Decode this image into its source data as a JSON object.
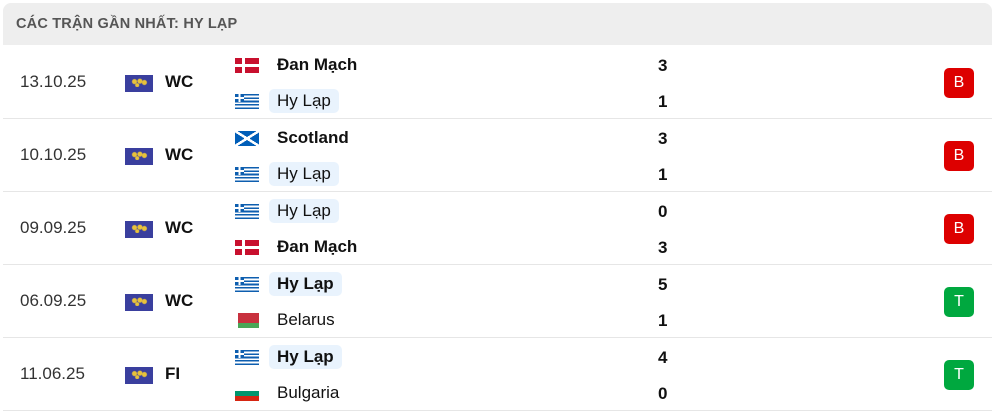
{
  "header": {
    "title": "CÁC TRẬN GẦN NHẤT: HY LẠP"
  },
  "colors": {
    "loss": "#dd0000",
    "win": "#00a83f",
    "highlight": "#e9f3fd"
  },
  "matches": [
    {
      "date": "13.10.25",
      "competition": "WC",
      "competition_icon": "world-map-icon",
      "home": {
        "name": "Đan Mạch",
        "flag": "denmark",
        "score": "3"
      },
      "away": {
        "name": "Hy Lạp",
        "flag": "greece",
        "score": "1"
      },
      "result": "B"
    },
    {
      "date": "10.10.25",
      "competition": "WC",
      "competition_icon": "world-map-icon",
      "home": {
        "name": "Scotland",
        "flag": "scotland",
        "score": "3"
      },
      "away": {
        "name": "Hy Lạp",
        "flag": "greece",
        "score": "1"
      },
      "result": "B"
    },
    {
      "date": "09.09.25",
      "competition": "WC",
      "competition_icon": "world-map-icon",
      "home": {
        "name": "Hy Lạp",
        "flag": "greece",
        "score": "0"
      },
      "away": {
        "name": "Đan Mạch",
        "flag": "denmark",
        "score": "3"
      },
      "result": "B"
    },
    {
      "date": "06.09.25",
      "competition": "WC",
      "competition_icon": "world-map-icon",
      "home": {
        "name": "Hy Lạp",
        "flag": "greece",
        "score": "5"
      },
      "away": {
        "name": "Belarus",
        "flag": "belarus",
        "score": "1"
      },
      "result": "T"
    },
    {
      "date": "11.06.25",
      "competition": "FI",
      "competition_icon": "world-map-icon",
      "home": {
        "name": "Hy Lạp",
        "flag": "greece",
        "score": "4"
      },
      "away": {
        "name": "Bulgaria",
        "flag": "bulgaria",
        "score": "0"
      },
      "result": "T"
    }
  ]
}
